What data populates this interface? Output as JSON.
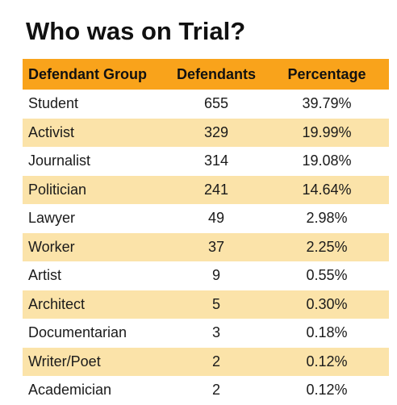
{
  "title": "Who was on Trial?",
  "chart_data": {
    "type": "table",
    "title": "Who was on Trial?",
    "columns": [
      "Defendant Group",
      "Defendants",
      "Percentage"
    ],
    "rows": [
      {
        "group": "Student",
        "defendants": "655",
        "percentage": "39.79%"
      },
      {
        "group": "Activist",
        "defendants": "329",
        "percentage": "19.99%"
      },
      {
        "group": "Journalist",
        "defendants": "314",
        "percentage": "19.08%"
      },
      {
        "group": "Politician",
        "defendants": "241",
        "percentage": "14.64%"
      },
      {
        "group": "Lawyer",
        "defendants": "49",
        "percentage": "2.98%"
      },
      {
        "group": "Worker",
        "defendants": "37",
        "percentage": "2.25%"
      },
      {
        "group": "Artist",
        "defendants": "9",
        "percentage": "0.55%"
      },
      {
        "group": "Architect",
        "defendants": "5",
        "percentage": "0.30%"
      },
      {
        "group": "Documentarian",
        "defendants": "3",
        "percentage": "0.18%"
      },
      {
        "group": "Writer/Poet",
        "defendants": "2",
        "percentage": "0.12%"
      },
      {
        "group": "Academician",
        "defendants": "2",
        "percentage": "0.12%"
      }
    ]
  },
  "colors": {
    "header_bg": "#f9a31b",
    "stripe_bg": "#fbe3a9",
    "row_bg": "#ffffff",
    "text": "#1a1a1a"
  }
}
